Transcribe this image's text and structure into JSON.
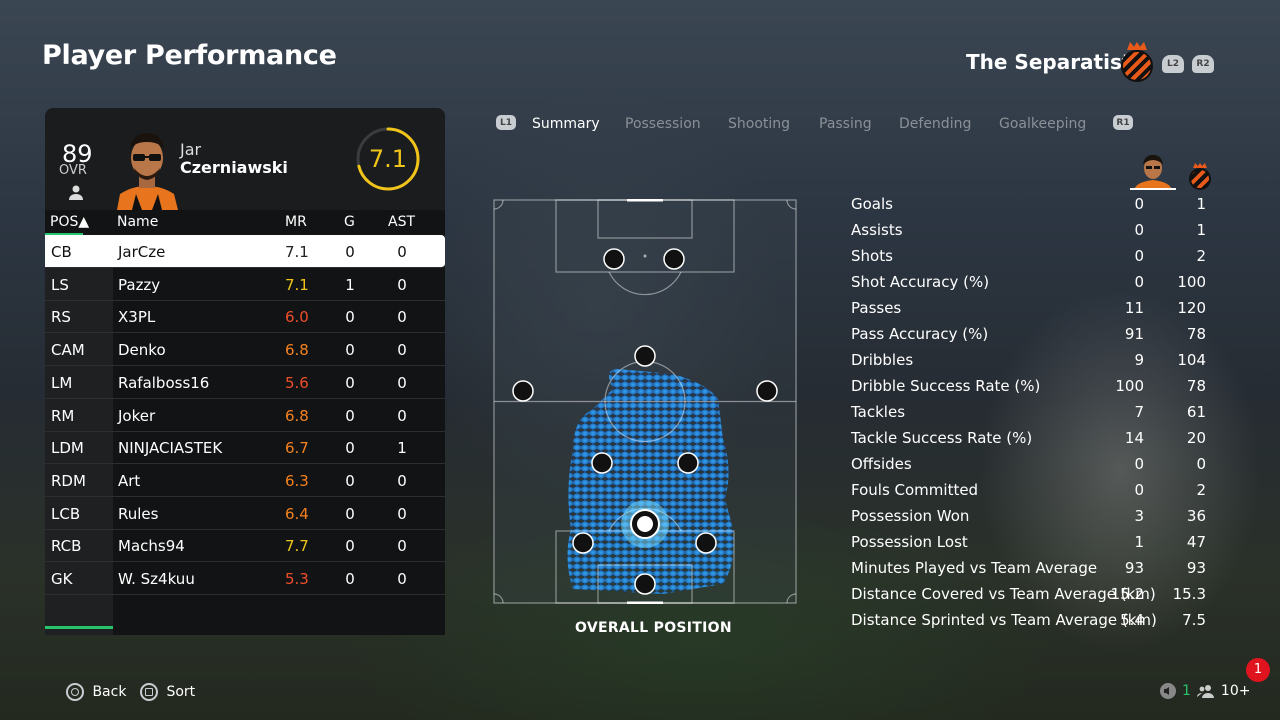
{
  "header": {
    "title": "Player Performance",
    "team_name": "The Separatists",
    "l2": "L2",
    "r2": "R2"
  },
  "player": {
    "ovr": "89",
    "ovr_label": "OVR",
    "first_name": "Jar",
    "last_name": "Czerniawski",
    "rating": "7.1",
    "rating_fraction": 0.71
  },
  "table": {
    "headers": {
      "pos": "POS▲",
      "name": "Name",
      "mr": "MR",
      "g": "G",
      "ast": "AST"
    },
    "rows": [
      {
        "pos": "CB",
        "name": "JarCze",
        "mr": "7.1",
        "g": "0",
        "ast": "0",
        "mr_color": "#222222"
      },
      {
        "pos": "LS",
        "name": "Pazzy",
        "mr": "7.1",
        "g": "1",
        "ast": "0",
        "mr_color": "#f0c419"
      },
      {
        "pos": "RS",
        "name": "X3PL",
        "mr": "6.0",
        "g": "0",
        "ast": "0",
        "mr_color": "#f04e2a"
      },
      {
        "pos": "CAM",
        "name": "Denko",
        "mr": "6.8",
        "g": "0",
        "ast": "0",
        "mr_color": "#f5821f"
      },
      {
        "pos": "LM",
        "name": "Rafalboss16",
        "mr": "5.6",
        "g": "0",
        "ast": "0",
        "mr_color": "#f04e2a"
      },
      {
        "pos": "RM",
        "name": "Joker",
        "mr": "6.8",
        "g": "0",
        "ast": "0",
        "mr_color": "#f5821f"
      },
      {
        "pos": "LDM",
        "name": "NINJACIASTEK",
        "mr": "6.7",
        "g": "0",
        "ast": "1",
        "mr_color": "#f5821f"
      },
      {
        "pos": "RDM",
        "name": "Art",
        "mr": "6.3",
        "g": "0",
        "ast": "0",
        "mr_color": "#f5821f"
      },
      {
        "pos": "LCB",
        "name": "Rules",
        "mr": "6.4",
        "g": "0",
        "ast": "0",
        "mr_color": "#f5821f"
      },
      {
        "pos": "RCB",
        "name": "Machs94",
        "mr": "7.7",
        "g": "0",
        "ast": "0",
        "mr_color": "#f0c419"
      },
      {
        "pos": "GK",
        "name": "W. Sz4kuu",
        "mr": "5.3",
        "g": "0",
        "ast": "0",
        "mr_color": "#f04e2a"
      }
    ]
  },
  "tabs": {
    "l1": "L1",
    "r1": "R1",
    "items": [
      "Summary",
      "Possession",
      "Shooting",
      "Passing",
      "Defending",
      "Goalkeeping"
    ],
    "active": "Summary"
  },
  "pitch": {
    "label": "OVERALL POSITION"
  },
  "stats": [
    {
      "label": "Goals",
      "player": "0",
      "team": "1"
    },
    {
      "label": "Assists",
      "player": "0",
      "team": "1"
    },
    {
      "label": "Shots",
      "player": "0",
      "team": "2"
    },
    {
      "label": "Shot Accuracy (%)",
      "player": "0",
      "team": "100"
    },
    {
      "label": "Passes",
      "player": "11",
      "team": "120"
    },
    {
      "label": "Pass Accuracy (%)",
      "player": "91",
      "team": "78"
    },
    {
      "label": "Dribbles",
      "player": "9",
      "team": "104"
    },
    {
      "label": "Dribble Success Rate (%)",
      "player": "100",
      "team": "78"
    },
    {
      "label": "Tackles",
      "player": "7",
      "team": "61"
    },
    {
      "label": "Tackle Success Rate (%)",
      "player": "14",
      "team": "20"
    },
    {
      "label": "Offsides",
      "player": "0",
      "team": "0"
    },
    {
      "label": "Fouls Committed",
      "player": "0",
      "team": "2"
    },
    {
      "label": "Possession Won",
      "player": "3",
      "team": "36"
    },
    {
      "label": "Possession Lost",
      "player": "1",
      "team": "47"
    },
    {
      "label": "Minutes Played vs Team Average",
      "player": "93",
      "team": "93"
    },
    {
      "label": "Distance Covered vs Team Average (km)",
      "player": "15.2",
      "team": "15.3"
    },
    {
      "label": "Distance Sprinted vs Team Average (km)",
      "player": "5.4",
      "team": "7.5"
    }
  ],
  "footer": {
    "back": "Back",
    "sort": "Sort",
    "count": "1",
    "party": "10+",
    "notification": "1"
  },
  "colors": {
    "accent_green": "#27c46b",
    "heat_blue": "#1e90ff",
    "rating_yellow": "#f0c419",
    "crest_orange": "#e85a1a"
  }
}
